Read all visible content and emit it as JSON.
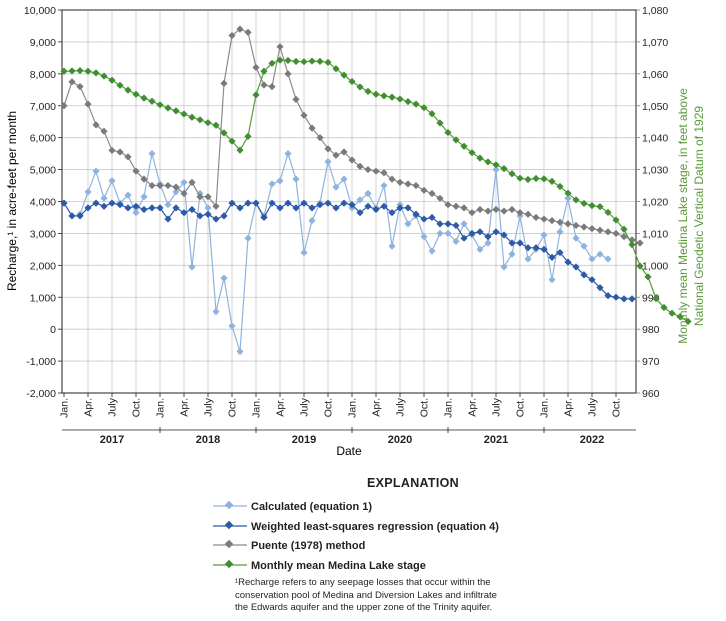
{
  "chart_data": {
    "type": "line",
    "xlabel": "Date",
    "ylabel_left": "Recharge,¹ in acre-feet per month",
    "ylabel_right_lines": [
      "Monthly mean Medina Lake stage, in feet above",
      "National Geodetic Vertical Datum of 1929"
    ],
    "ylim_left": [
      -2000,
      10000
    ],
    "ylim_right": [
      960,
      1080
    ],
    "yticks_left": [
      "10,000",
      "9,000",
      "8,000",
      "7,000",
      "6,000",
      "5,000",
      "4,000",
      "3,000",
      "2,000",
      "1,000",
      "0",
      "-1,000",
      "-2,000"
    ],
    "yticks_right": [
      "1,080",
      "1,070",
      "1,060",
      "1,050",
      "1,040",
      "1,030",
      "1,020",
      "1,010",
      "1,000",
      "990",
      "980",
      "970",
      "960"
    ],
    "month_labels": [
      "Jan.",
      "Apr.",
      "July",
      "Oct."
    ],
    "years": [
      "2017",
      "2018",
      "2019",
      "2020",
      "2021",
      "2022"
    ],
    "legend_title": "EXPLANATION",
    "series": [
      {
        "name": "Calculated (equation 1)",
        "color": "#8fb3de",
        "marker": "#8fb3de",
        "axis": "left",
        "values": [
          null,
          null,
          3600,
          4300,
          4950,
          4100,
          4650,
          3950,
          4200,
          3650,
          4150,
          5500,
          4550,
          3900,
          4300,
          4600,
          1950,
          4250,
          3800,
          550,
          1600,
          100,
          -700,
          2850,
          3950,
          3550,
          4550,
          4650,
          5500,
          4700,
          2400,
          3400,
          3950,
          5250,
          4450,
          4700,
          3800,
          4050,
          4250,
          3800,
          4500,
          2600,
          3900,
          3300,
          3550,
          2900,
          2450,
          3000,
          3000,
          2750,
          3300,
          2950,
          2500,
          2700,
          5000,
          1950,
          2350,
          3550,
          2200,
          2500,
          2950,
          1550,
          3050,
          4100,
          2850,
          2600,
          2200,
          2350,
          2200,
          null
        ]
      },
      {
        "name": "Weighted least-squares regression (equation 4)",
        "color": "#2d5aa8",
        "marker": "#2d5aa8",
        "axis": "left",
        "values": [
          3950,
          3550,
          3550,
          3800,
          3950,
          3850,
          3950,
          3900,
          3800,
          3850,
          3750,
          3800,
          3800,
          3450,
          3800,
          3650,
          3750,
          3550,
          3600,
          3450,
          3550,
          3950,
          3800,
          3950,
          3950,
          3500,
          3950,
          3800,
          3950,
          3800,
          3950,
          3800,
          3900,
          3950,
          3800,
          3950,
          3900,
          3650,
          3850,
          3750,
          3850,
          3650,
          3800,
          3800,
          3600,
          3450,
          3500,
          3300,
          3300,
          3250,
          2850,
          3000,
          3050,
          2900,
          3050,
          2950,
          2700,
          2700,
          2550,
          2550,
          2500,
          2250,
          2400,
          2100,
          1950,
          1700,
          1550,
          1300,
          1050,
          1000,
          950,
          950
        ]
      },
      {
        "name": "Puente (1978) method",
        "color": "#8c8c8c",
        "marker": "#7a7a7a",
        "axis": "left",
        "values": [
          7000,
          7750,
          7600,
          7050,
          6400,
          6200,
          5600,
          5550,
          5400,
          4950,
          4700,
          4500,
          4500,
          4500,
          4450,
          4250,
          4600,
          4150,
          4150,
          3850,
          7700,
          9200,
          9400,
          9300,
          8200,
          7650,
          7600,
          8850,
          8000,
          7200,
          6700,
          6300,
          6000,
          5650,
          5450,
          5550,
          5300,
          5100,
          5000,
          4950,
          4900,
          4700,
          4600,
          4550,
          4500,
          4350,
          4250,
          4100,
          3900,
          3850,
          3800,
          3650,
          3750,
          3700,
          3750,
          3700,
          3750,
          3650,
          3600,
          3500,
          3450,
          3400,
          3350,
          3300,
          3250,
          3200,
          3150,
          3100,
          3050,
          3000,
          2900,
          2800,
          2700
        ]
      },
      {
        "name": "Monthly mean Medina Lake stage",
        "color": "#5a9a3c",
        "marker": "#3f8f2f",
        "axis": "right",
        "values": [
          1060.8,
          1060.9,
          1061,
          1060.8,
          1060.3,
          1059.3,
          1058,
          1056.4,
          1054.9,
          1053.6,
          1052.4,
          1051.4,
          1050.3,
          1049.3,
          1048.4,
          1047.4,
          1046.4,
          1045.6,
          1044.7,
          1043.9,
          1041.5,
          1038.9,
          1036.1,
          1040.4,
          1053.4,
          1060.8,
          1063.3,
          1064.3,
          1064.2,
          1063.9,
          1063.8,
          1064,
          1063.9,
          1063.6,
          1061.6,
          1059.6,
          1057.6,
          1055.9,
          1054.5,
          1053.6,
          1053.1,
          1052.7,
          1052.1,
          1051.3,
          1050.5,
          1049.4,
          1047.5,
          1044.6,
          1041.6,
          1039.3,
          1037.3,
          1035.3,
          1033.6,
          1032.4,
          1031.5,
          1030.3,
          1028.7,
          1027.3,
          1026.9,
          1027.2,
          1027.1,
          1026.3,
          1024.7,
          1022.6,
          1020.5,
          1019.4,
          1018.7,
          1018.4,
          1016.6,
          1014.2,
          1011.3,
          1006.5,
          999.8,
          996.4,
          989.6,
          986.8,
          985,
          983.9,
          982.4
        ]
      }
    ],
    "footnote_lines": [
      "¹Recharge refers to any seepage losses that occur within the",
      "conservation pool of Medina and Diversion Lakes and infiltrate",
      "the Edwards aquifer and the upper zone of the Trinity aquifer."
    ]
  }
}
